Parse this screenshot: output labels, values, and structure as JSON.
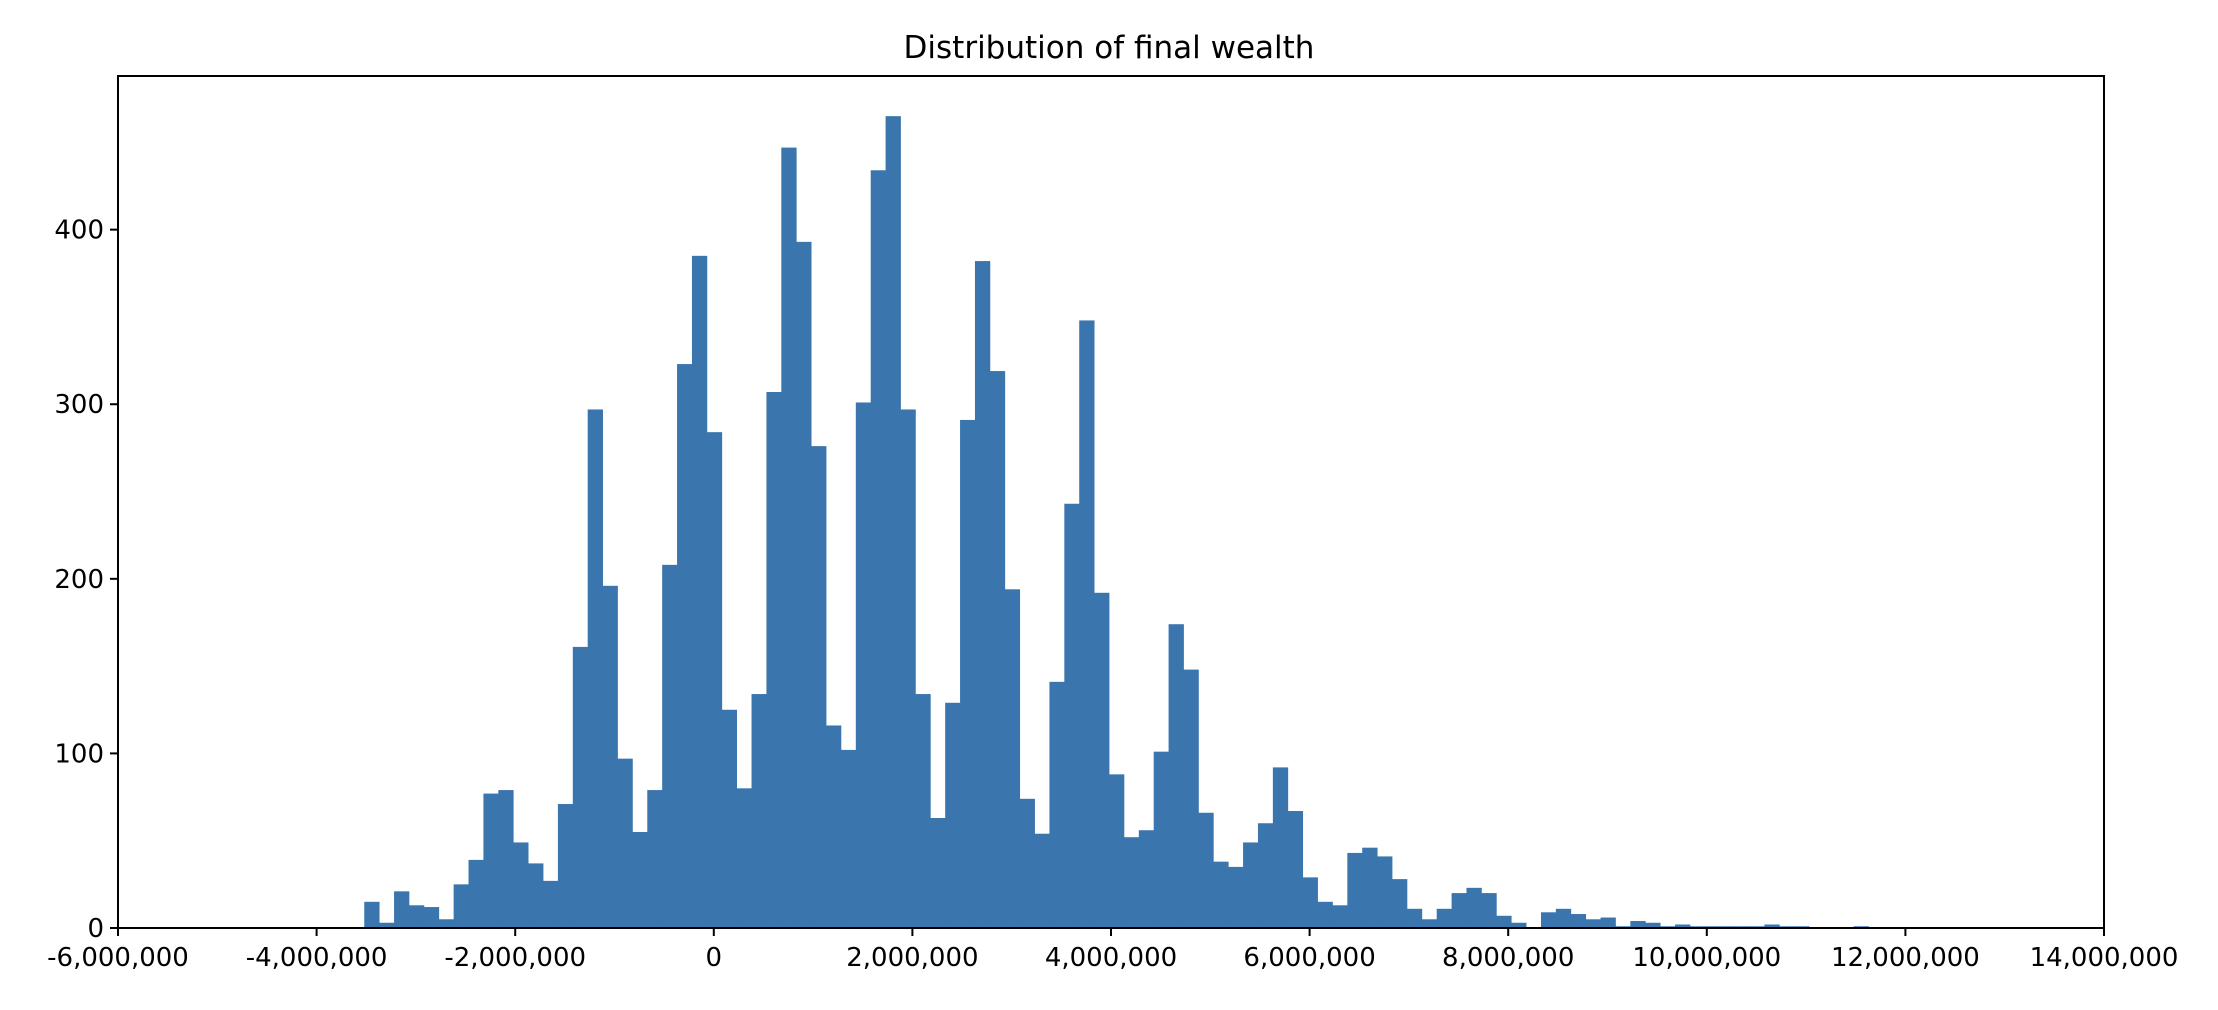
{
  "chart_data": {
    "type": "bar",
    "title": "Distribution of final wealth",
    "xlabel": "",
    "ylabel": "",
    "xlim": [
      -6000000,
      14000000
    ],
    "ylim": [
      0,
      488
    ],
    "grid": false,
    "bar_color": "#3a75ae",
    "x_ticks": [
      {
        "value": -6000000,
        "label": "-6,000,000"
      },
      {
        "value": -4000000,
        "label": "-4,000,000"
      },
      {
        "value": -2000000,
        "label": "-2,000,000"
      },
      {
        "value": 0,
        "label": "0"
      },
      {
        "value": 2000000,
        "label": "2,000,000"
      },
      {
        "value": 4000000,
        "label": "4,000,000"
      },
      {
        "value": 6000000,
        "label": "6,000,000"
      },
      {
        "value": 8000000,
        "label": "8,000,000"
      },
      {
        "value": 10000000,
        "label": "10,000,000"
      },
      {
        "value": 12000000,
        "label": "12,000,000"
      },
      {
        "value": 14000000,
        "label": "14,000,000"
      }
    ],
    "y_ticks": [
      {
        "value": 0,
        "label": "0"
      },
      {
        "value": 100,
        "label": "100"
      },
      {
        "value": 200,
        "label": "200"
      },
      {
        "value": 300,
        "label": "300"
      },
      {
        "value": 400,
        "label": "400"
      }
    ],
    "bins": {
      "start": -3520000,
      "width": 150000,
      "counts": [
        15,
        3,
        21,
        13,
        12,
        5,
        25,
        39,
        77,
        79,
        49,
        37,
        27,
        71,
        161,
        297,
        196,
        97,
        55,
        79,
        208,
        323,
        385,
        284,
        125,
        80,
        134,
        307,
        447,
        393,
        276,
        116,
        102,
        301,
        434,
        465,
        297,
        134,
        63,
        129,
        291,
        382,
        319,
        194,
        74,
        54,
        141,
        243,
        348,
        192,
        88,
        52,
        56,
        101,
        174,
        148,
        66,
        38,
        35,
        49,
        60,
        92,
        67,
        29,
        15,
        13,
        43,
        46,
        41,
        28,
        11,
        5,
        11,
        20,
        23,
        20,
        7,
        3,
        0,
        9,
        11,
        8,
        5,
        6,
        1,
        4,
        3,
        1,
        2,
        1,
        1,
        1,
        1,
        1,
        2,
        1,
        1,
        0,
        0,
        0,
        1
      ]
    }
  }
}
